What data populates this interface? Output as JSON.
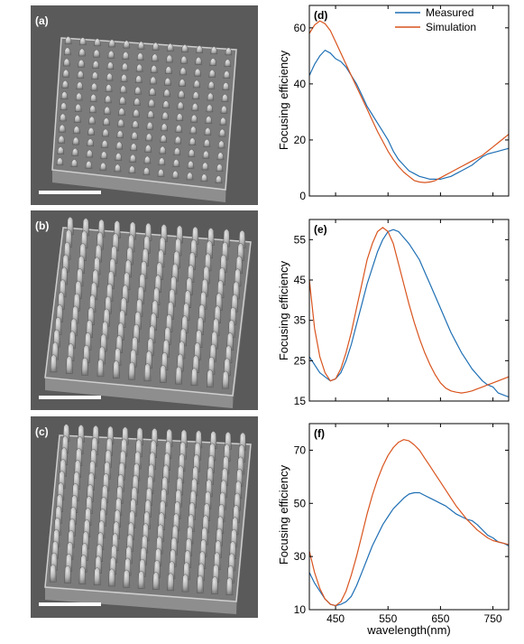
{
  "colors": {
    "measured": "#1f6fb4",
    "simulation": "#d9541e",
    "sem_bg": "#5a5a5a"
  },
  "sem_panels": [
    {
      "label": "(a)",
      "rows": 12,
      "cols": 12,
      "style": "short"
    },
    {
      "label": "(b)",
      "rows": 12,
      "cols": 12,
      "style": "tall"
    },
    {
      "label": "(c)",
      "rows": 13,
      "cols": 13,
      "style": "tall"
    }
  ],
  "chart_data": [
    {
      "type": "line",
      "panel_label": "(d)",
      "ylabel": "Focusing efficiency",
      "xlabel": "",
      "xlim": [
        400,
        780
      ],
      "ylim": [
        0,
        68
      ],
      "xticks": [],
      "yticks": [
        0,
        20,
        40,
        60
      ],
      "legend": {
        "position": "top-right",
        "entries": [
          "Measured",
          "Simulation"
        ]
      },
      "series": [
        {
          "name": "Measured",
          "color": "#1f6fb4",
          "x": [
            400,
            410,
            420,
            430,
            440,
            450,
            460,
            470,
            480,
            490,
            500,
            510,
            520,
            530,
            540,
            550,
            560,
            570,
            580,
            590,
            600,
            610,
            620,
            630,
            640,
            650,
            660,
            670,
            680,
            690,
            700,
            710,
            720,
            730,
            740,
            750,
            760,
            770,
            780
          ],
          "y": [
            43,
            47,
            50,
            52,
            51,
            49,
            48,
            46,
            43,
            40,
            36,
            32,
            29,
            26,
            23,
            20,
            16,
            13,
            11,
            9,
            8,
            7,
            6.5,
            6,
            6,
            6,
            6.5,
            7,
            8,
            9,
            10,
            11,
            12.5,
            14,
            15,
            15.5,
            16,
            16.5,
            17
          ]
        },
        {
          "name": "Simulation",
          "color": "#d9541e",
          "x": [
            400,
            410,
            420,
            430,
            440,
            450,
            460,
            470,
            480,
            490,
            500,
            510,
            520,
            530,
            540,
            550,
            560,
            570,
            580,
            590,
            600,
            610,
            620,
            630,
            640,
            650,
            660,
            670,
            680,
            690,
            700,
            710,
            720,
            730,
            740,
            750,
            760,
            770,
            780
          ],
          "y": [
            58,
            61,
            62.5,
            61.5,
            59,
            55,
            51,
            47,
            43,
            39,
            35,
            31,
            27,
            23,
            19.5,
            16,
            13,
            10.5,
            8.5,
            7,
            5.5,
            5,
            4.8,
            5,
            5.5,
            6.5,
            7.5,
            8.5,
            9.5,
            10.5,
            11.5,
            12.5,
            13.5,
            14.5,
            16,
            17.5,
            19,
            20.5,
            22
          ]
        }
      ]
    },
    {
      "type": "line",
      "panel_label": "(e)",
      "ylabel": "Focusing efficiency",
      "xlabel": "",
      "xlim": [
        400,
        780
      ],
      "ylim": [
        15,
        60
      ],
      "xticks": [],
      "yticks": [
        15,
        25,
        35,
        45,
        55
      ],
      "series": [
        {
          "name": "Measured",
          "color": "#1f6fb4",
          "x": [
            400,
            410,
            420,
            430,
            440,
            450,
            460,
            470,
            480,
            490,
            500,
            510,
            520,
            530,
            540,
            550,
            560,
            570,
            580,
            590,
            600,
            610,
            620,
            630,
            640,
            650,
            660,
            670,
            680,
            690,
            700,
            710,
            720,
            730,
            740,
            750,
            760,
            770,
            780
          ],
          "y": [
            26,
            24,
            22,
            21,
            20,
            20.5,
            22,
            25,
            29,
            34,
            39,
            44,
            48,
            52,
            55,
            57,
            57.5,
            57,
            55.5,
            54,
            52,
            50,
            47,
            44,
            41,
            38,
            35,
            32,
            29.5,
            27,
            25,
            23,
            21.5,
            20,
            19,
            18.5,
            17,
            16.5,
            16
          ]
        },
        {
          "name": "Simulation",
          "color": "#d9541e",
          "x": [
            400,
            410,
            420,
            430,
            440,
            450,
            460,
            470,
            480,
            490,
            500,
            510,
            520,
            530,
            540,
            550,
            560,
            570,
            580,
            590,
            600,
            610,
            620,
            630,
            640,
            650,
            660,
            670,
            680,
            690,
            700,
            710,
            720,
            730,
            740,
            750,
            760,
            770,
            780
          ],
          "y": [
            45,
            33,
            26,
            22,
            20,
            20.5,
            23,
            27,
            32,
            38,
            44,
            50,
            54,
            57,
            58,
            57,
            54,
            49,
            44,
            39,
            34.5,
            30.5,
            27,
            24,
            21.5,
            19.5,
            18.2,
            17.5,
            17.2,
            17,
            17.2,
            17.5,
            18,
            18.5,
            19,
            19.5,
            20,
            20.5,
            21
          ]
        }
      ]
    },
    {
      "type": "line",
      "panel_label": "(f)",
      "ylabel": "Focusing efficiency",
      "xlabel": "wavelength(nm)",
      "xlim": [
        400,
        780
      ],
      "ylim": [
        10,
        80
      ],
      "xticks": [
        450,
        550,
        650,
        750
      ],
      "yticks": [
        10,
        30,
        50,
        70
      ],
      "series": [
        {
          "name": "Measured",
          "color": "#1f6fb4",
          "x": [
            400,
            410,
            420,
            430,
            440,
            450,
            460,
            470,
            480,
            490,
            500,
            510,
            520,
            530,
            540,
            550,
            560,
            570,
            580,
            590,
            600,
            610,
            620,
            630,
            640,
            650,
            660,
            670,
            680,
            690,
            700,
            710,
            720,
            730,
            740,
            750,
            760,
            770,
            780
          ],
          "y": [
            24,
            20,
            17,
            14,
            12,
            11.5,
            12,
            13,
            15,
            19,
            24,
            29,
            34,
            38,
            42,
            45,
            48,
            50,
            52,
            53.5,
            54,
            54,
            53,
            52,
            51,
            50,
            49,
            47.5,
            46,
            45,
            44,
            43.5,
            42,
            40,
            38,
            37,
            35.5,
            35,
            34
          ]
        },
        {
          "name": "Simulation",
          "color": "#d9541e",
          "x": [
            400,
            410,
            420,
            430,
            440,
            450,
            460,
            470,
            480,
            490,
            500,
            510,
            520,
            530,
            540,
            550,
            560,
            570,
            580,
            590,
            600,
            610,
            620,
            630,
            640,
            650,
            660,
            670,
            680,
            690,
            700,
            710,
            720,
            730,
            740,
            750,
            760,
            770,
            780
          ],
          "y": [
            32,
            24,
            18,
            14,
            12,
            11.5,
            13,
            17,
            23,
            30,
            38,
            46,
            53,
            59,
            64,
            68,
            71,
            73,
            74,
            73.5,
            72,
            70,
            67,
            64,
            61,
            58,
            55,
            52,
            49,
            46.5,
            44,
            42,
            40,
            38.5,
            37,
            36,
            35.5,
            35,
            34.5
          ]
        }
      ]
    }
  ]
}
